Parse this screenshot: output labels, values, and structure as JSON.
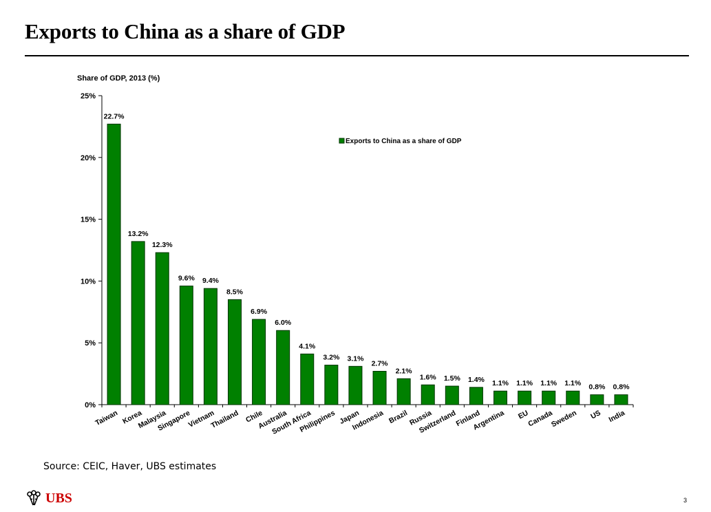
{
  "slide": {
    "title": "Exports to China as a share of GDP",
    "source": "Source: CEIC, Haver, UBS estimates",
    "logo_text": "UBS",
    "page_number": "3"
  },
  "colors": {
    "bar": "#008000",
    "bar_stroke": "#003300",
    "brand_red": "#cc0000"
  },
  "chart_data": {
    "type": "bar",
    "title": "",
    "ylabel": "Share of GDP, 2013 (%)",
    "xlabel": "",
    "ylim": [
      0,
      25
    ],
    "yticks": [
      0,
      5,
      10,
      15,
      20,
      25
    ],
    "ytick_labels": [
      "0%",
      "5%",
      "10%",
      "15%",
      "20%",
      "25%"
    ],
    "legend": {
      "label": "Exports to China as a share of GDP",
      "placement": "top-center"
    },
    "grid": false,
    "categories": [
      "Taiwan",
      "Korea",
      "Malaysia",
      "Singapore",
      "Vietnam",
      "Thailand",
      "Chile",
      "Australia",
      "South Africa",
      "Philippines",
      "Japan",
      "Indonesia",
      "Brazil",
      "Russia",
      "Switzerland",
      "Finland",
      "Argentina",
      "EU",
      "Canada",
      "Sweden",
      "US",
      "India"
    ],
    "values": [
      22.7,
      13.2,
      12.3,
      9.6,
      9.4,
      8.5,
      6.9,
      6.0,
      4.1,
      3.2,
      3.1,
      2.7,
      2.1,
      1.6,
      1.5,
      1.4,
      1.1,
      1.1,
      1.1,
      1.1,
      0.8,
      0.8
    ],
    "data_labels": [
      "22.7%",
      "13.2%",
      "12.3%",
      "9.6%",
      "9.4%",
      "8.5%",
      "6.9%",
      "6.0%",
      "4.1%",
      "3.2%",
      "3.1%",
      "2.7%",
      "2.1%",
      "1.6%",
      "1.5%",
      "1.4%",
      "1.1%",
      "1.1%",
      "1.1%",
      "1.1%",
      "0.8%",
      "0.8%"
    ]
  }
}
